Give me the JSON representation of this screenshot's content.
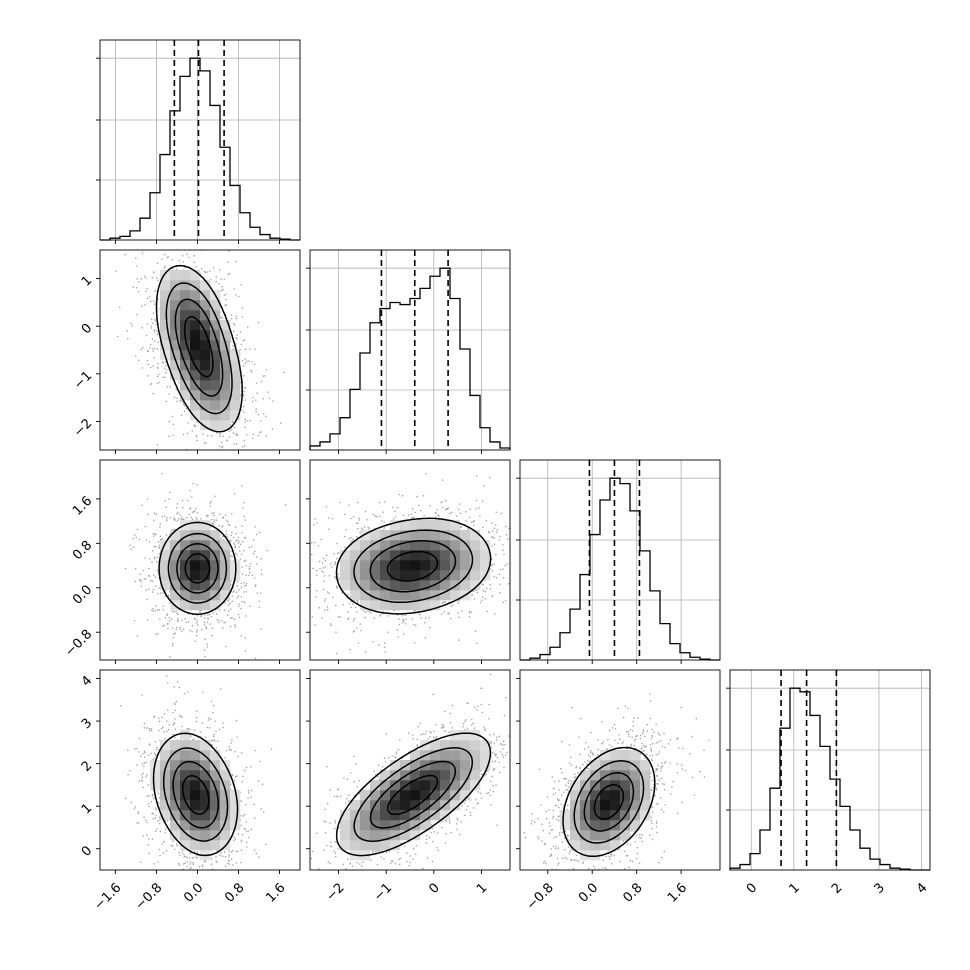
{
  "chart_data": {
    "type": "corner",
    "title": "",
    "n_params": 4,
    "grid": true,
    "params": [
      {
        "range": [
          -1.9,
          2.0
        ],
        "ticks": [
          -1.6,
          -0.8,
          0.0,
          0.8,
          1.6
        ],
        "tick_labels": [
          "−1.6",
          "−0.8",
          "0.0",
          "0.8",
          "1.6"
        ],
        "mean": 0.02,
        "sd": 0.38,
        "quantiles": [
          -0.45,
          0.02,
          0.52
        ]
      },
      {
        "range": [
          -2.6,
          1.6
        ],
        "ticks": [
          -2,
          -1,
          0,
          1
        ],
        "tick_labels": [
          "−2",
          "−1",
          "0",
          "1"
        ],
        "mean": -0.4,
        "sd": 0.7,
        "quantiles": [
          -1.1,
          -0.4,
          0.3
        ]
      },
      {
        "range": [
          -1.3,
          2.3
        ],
        "ticks": [
          -0.8,
          0.0,
          0.8,
          1.6
        ],
        "tick_labels": [
          "−0.8",
          "0.0",
          "0.8",
          "1.6"
        ],
        "mean": 0.4,
        "sd": 0.42,
        "quantiles": [
          -0.05,
          0.4,
          0.85
        ]
      },
      {
        "range": [
          -0.5,
          4.2
        ],
        "ticks": [
          0,
          1,
          2,
          3,
          4
        ],
        "tick_labels": [
          "0",
          "1",
          "2",
          "3",
          "4"
        ],
        "mean": 1.3,
        "sd": 0.65,
        "quantiles": [
          0.7,
          1.3,
          2.0
        ]
      }
    ],
    "histograms": [
      {
        "param": 0,
        "bins": [
          -1.9,
          -1.705,
          -1.51,
          -1.315,
          -1.12,
          -0.925,
          -0.73,
          -0.535,
          -0.34,
          -0.145,
          0.05,
          0.245,
          0.44,
          0.635,
          0.83,
          1.025,
          1.22,
          1.415,
          1.61,
          1.805,
          2.0
        ],
        "counts": [
          0.0,
          0.01,
          0.02,
          0.05,
          0.12,
          0.26,
          0.47,
          0.71,
          0.9,
          1.0,
          0.93,
          0.74,
          0.51,
          0.3,
          0.15,
          0.07,
          0.03,
          0.01,
          0.005,
          0.0
        ]
      },
      {
        "param": 1,
        "bins": [
          -2.6,
          -2.39,
          -2.18,
          -1.97,
          -1.76,
          -1.55,
          -1.34,
          -1.13,
          -0.92,
          -0.71,
          -0.5,
          -0.29,
          -0.08,
          0.13,
          0.34,
          0.55,
          0.76,
          0.97,
          1.18,
          1.39,
          1.6
        ],
        "counts": [
          0.02,
          0.04,
          0.08,
          0.16,
          0.3,
          0.48,
          0.63,
          0.7,
          0.73,
          0.72,
          0.75,
          0.8,
          0.86,
          0.9,
          0.75,
          0.5,
          0.27,
          0.11,
          0.04,
          0.01
        ]
      },
      {
        "param": 2,
        "bins": [
          -1.3,
          -1.12,
          -0.94,
          -0.76,
          -0.58,
          -0.4,
          -0.22,
          -0.04,
          0.14,
          0.32,
          0.5,
          0.68,
          0.86,
          1.04,
          1.22,
          1.4,
          1.58,
          1.76,
          1.94,
          2.12,
          2.3
        ],
        "counts": [
          0.0,
          0.01,
          0.03,
          0.07,
          0.15,
          0.28,
          0.47,
          0.69,
          0.88,
          1.0,
          0.97,
          0.82,
          0.6,
          0.38,
          0.2,
          0.09,
          0.04,
          0.015,
          0.005,
          0.0
        ]
      },
      {
        "param": 3,
        "bins": [
          -0.5,
          -0.265,
          -0.03,
          0.205,
          0.44,
          0.675,
          0.91,
          1.145,
          1.38,
          1.615,
          1.85,
          2.085,
          2.32,
          2.555,
          2.79,
          3.025,
          3.26,
          3.495,
          3.73,
          3.965,
          4.2
        ],
        "counts": [
          0.01,
          0.03,
          0.09,
          0.22,
          0.45,
          0.78,
          1.0,
          0.98,
          0.85,
          0.68,
          0.5,
          0.35,
          0.22,
          0.12,
          0.06,
          0.03,
          0.01,
          0.005,
          0.0,
          0.0
        ]
      }
    ],
    "pairs": [
      {
        "x": 0,
        "y": 1,
        "rho": -0.35,
        "density_peaks": [
          [
            -0.1,
            0.0
          ],
          [
            0.2,
            -1.0
          ]
        ]
      },
      {
        "x": 0,
        "y": 2,
        "rho": 0.0,
        "density_peaks": [
          [
            0.0,
            0.35
          ]
        ]
      },
      {
        "x": 1,
        "y": 2,
        "rho": 0.05,
        "density_peaks": [
          [
            -0.8,
            0.3
          ],
          [
            0.0,
            0.5
          ]
        ]
      },
      {
        "x": 0,
        "y": 3,
        "rho": -0.1,
        "density_peaks": [
          [
            0.1,
            1.0
          ],
          [
            -0.2,
            1.6
          ]
        ]
      },
      {
        "x": 1,
        "y": 3,
        "rho": 0.6,
        "density_peaks": [
          [
            -0.8,
            1.0
          ],
          [
            0.0,
            1.6
          ]
        ]
      },
      {
        "x": 2,
        "y": 3,
        "rho": 0.35,
        "density_peaks": [
          [
            0.3,
            1.1
          ]
        ]
      }
    ],
    "contour_levels": [
      0.12,
      0.39,
      0.68,
      0.86
    ]
  }
}
